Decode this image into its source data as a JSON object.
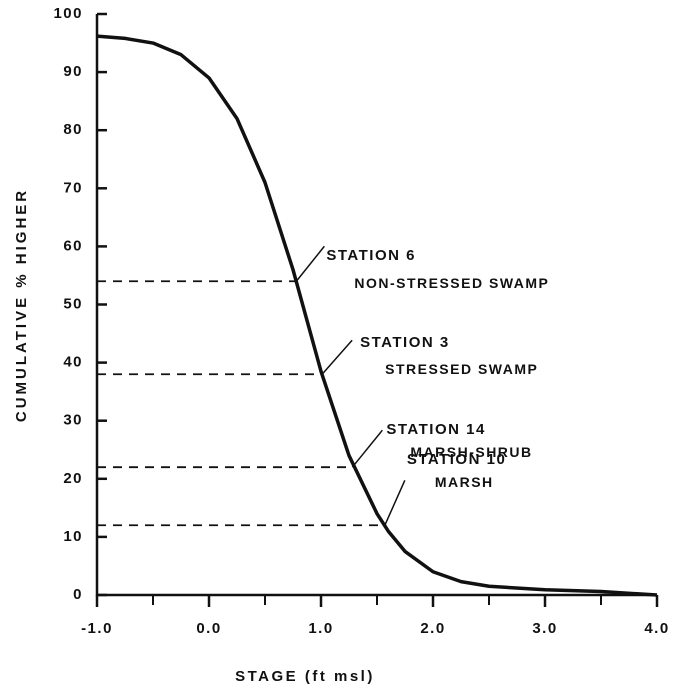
{
  "chart_data": {
    "type": "line",
    "xlabel": "STAGE (ft msl)",
    "ylabel": "CUMULATIVE % HIGHER",
    "x": [
      -1.0,
      -0.75,
      -0.5,
      -0.25,
      0.0,
      0.25,
      0.5,
      0.75,
      1.0,
      1.25,
      1.5,
      1.6,
      1.75,
      2.0,
      2.25,
      2.5,
      3.0,
      3.5,
      4.0
    ],
    "series": [
      {
        "color": "#111111",
        "values": [
          96.2,
          95.8,
          95,
          93,
          89,
          82,
          71,
          56,
          38.5,
          24,
          14,
          11,
          7.5,
          4,
          2.3,
          1.5,
          0.9,
          0.6,
          0
        ]
      }
    ],
    "xlim": [
      -1.0,
      4.0
    ],
    "ylim": [
      0,
      100
    ],
    "xticks": [
      {
        "value": -1.0,
        "label": "-1.0"
      },
      {
        "value": 0,
        "label": "0.0"
      },
      {
        "value": 1,
        "label": "1.0"
      },
      {
        "value": 2,
        "label": "2.0"
      },
      {
        "value": 3,
        "label": "3.0"
      },
      {
        "value": 4,
        "label": "4.0"
      }
    ],
    "xminor_ticks": [
      -0.5,
      0.5,
      1.5,
      2.5,
      3.5
    ],
    "yticks": [
      0,
      10,
      20,
      30,
      40,
      50,
      60,
      70,
      80,
      90,
      100
    ],
    "references": [
      {
        "label": "STATION 6",
        "sublabel": "NON-STRESSED SWAMP",
        "y": 54,
        "x": 0.78
      },
      {
        "label": "STATION 3",
        "sublabel": "STRESSED SWAMP",
        "y": 38,
        "x": 1.01
      },
      {
        "label": "STATION 14",
        "sublabel": "MARSH-SHRUB",
        "y": 22,
        "x": 1.28
      },
      {
        "label": "STATION 10",
        "sublabel": "MARSH",
        "y": 12,
        "x": 1.57
      }
    ]
  }
}
